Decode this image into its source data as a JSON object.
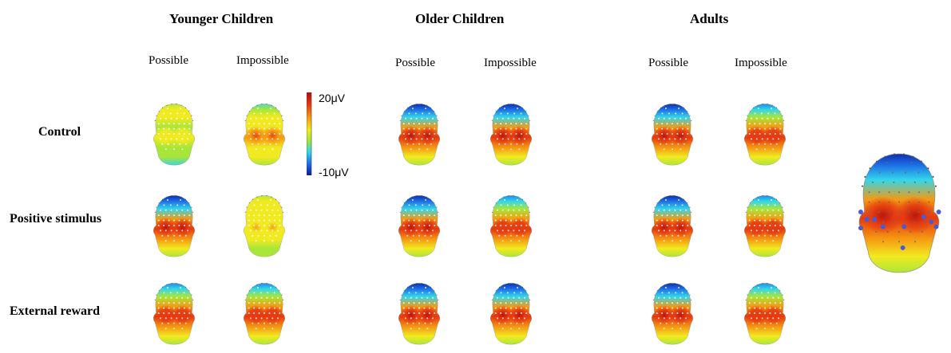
{
  "groups": [
    {
      "title": "Younger Children",
      "conditions": [
        "Possible",
        "Impossible"
      ]
    },
    {
      "title": "Older Children",
      "conditions": [
        "Possible",
        "Impossible"
      ]
    },
    {
      "title": "Adults",
      "conditions": [
        "Possible",
        "Impossible"
      ]
    }
  ],
  "rows": [
    "Control",
    "Positive stimulus",
    "External reward"
  ],
  "colorbar": {
    "max_label": "20μV",
    "min_label": "-10μV"
  },
  "heads": [
    [
      {
        "group": "Younger Children",
        "condition": "Possible",
        "row": "Control",
        "level": 0.15
      },
      {
        "group": "Younger Children",
        "condition": "Impossible",
        "row": "Control",
        "level": 0.45
      },
      {
        "group": "Older Children",
        "condition": "Possible",
        "row": "Control",
        "level": 0.9
      },
      {
        "group": "Older Children",
        "condition": "Impossible",
        "row": "Control",
        "level": 0.9
      },
      {
        "group": "Adults",
        "condition": "Possible",
        "row": "Control",
        "level": 0.95
      },
      {
        "group": "Adults",
        "condition": "Impossible",
        "row": "Control",
        "level": 0.85
      }
    ],
    [
      {
        "group": "Younger Children",
        "condition": "Possible",
        "row": "Positive stimulus",
        "level": 0.95
      },
      {
        "group": "Younger Children",
        "condition": "Impossible",
        "row": "Positive stimulus",
        "level": 0.2
      },
      {
        "group": "Older Children",
        "condition": "Possible",
        "row": "Positive stimulus",
        "level": 0.9
      },
      {
        "group": "Older Children",
        "condition": "Impossible",
        "row": "Positive stimulus",
        "level": 0.8
      },
      {
        "group": "Adults",
        "condition": "Possible",
        "row": "Positive stimulus",
        "level": 0.9
      },
      {
        "group": "Adults",
        "condition": "Impossible",
        "row": "Positive stimulus",
        "level": 0.75
      }
    ],
    [
      {
        "group": "Younger Children",
        "condition": "Possible",
        "row": "External reward",
        "level": 0.7
      },
      {
        "group": "Younger Children",
        "condition": "Impossible",
        "row": "External reward",
        "level": 0.85
      },
      {
        "group": "Older Children",
        "condition": "Possible",
        "row": "External reward",
        "level": 0.95
      },
      {
        "group": "Older Children",
        "condition": "Impossible",
        "row": "External reward",
        "level": 0.95
      },
      {
        "group": "Adults",
        "condition": "Possible",
        "row": "External reward",
        "level": 0.9
      },
      {
        "group": "Adults",
        "condition": "Impossible",
        "row": "External reward",
        "level": 0.85
      }
    ]
  ],
  "colors": {
    "scale": [
      "#0a1a9a",
      "#1e6ee6",
      "#33d6ea",
      "#a8e63a",
      "#f2ea20",
      "#f59a12",
      "#e43a12",
      "#b50e0e"
    ],
    "electrode": "#ffffff",
    "roi_electrode": "#4a5ad8"
  }
}
